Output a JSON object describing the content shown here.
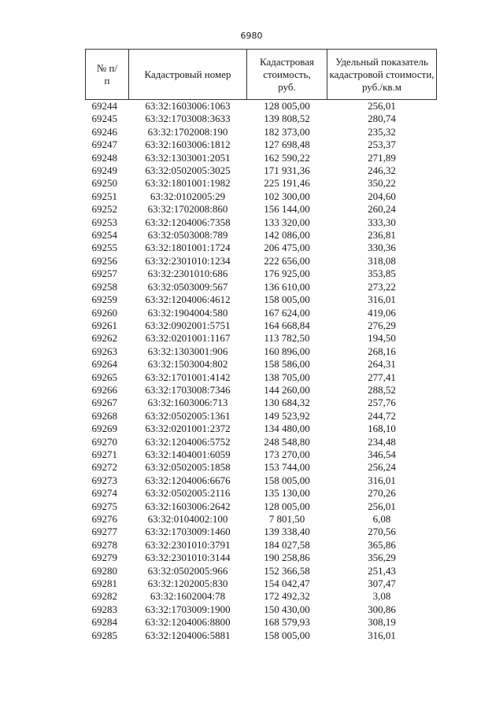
{
  "page_number": "6980",
  "table": {
    "headers": [
      "№ п/п",
      "Кадастровый номер",
      "Кадастровая стоимость, руб.",
      "Удельный показатель кадастровой стоимости, руб./кв.м"
    ],
    "rows": [
      [
        "69244",
        "63:32:1603006:1063",
        "128 005,00",
        "256,01"
      ],
      [
        "69245",
        "63:32:1703008:3633",
        "139 808,52",
        "280,74"
      ],
      [
        "69246",
        "63:32:1702008:190",
        "182 373,00",
        "235,32"
      ],
      [
        "69247",
        "63:32:1603006:1812",
        "127 698,48",
        "253,37"
      ],
      [
        "69248",
        "63:32:1303001:2051",
        "162 590,22",
        "271,89"
      ],
      [
        "69249",
        "63:32:0502005:3025",
        "171 931,36",
        "246,32"
      ],
      [
        "69250",
        "63:32:1801001:1982",
        "225 191,46",
        "350,22"
      ],
      [
        "69251",
        "63:32:0102005:29",
        "102 300,00",
        "204,60"
      ],
      [
        "69252",
        "63:32:1702008:860",
        "156 144,00",
        "260,24"
      ],
      [
        "69253",
        "63:32:1204006:7358",
        "133 320,00",
        "333,30"
      ],
      [
        "69254",
        "63:32:0503008:789",
        "142 086,00",
        "236,81"
      ],
      [
        "69255",
        "63:32:1801001:1724",
        "206 475,00",
        "330,36"
      ],
      [
        "69256",
        "63:32:2301010:1234",
        "222 656,00",
        "318,08"
      ],
      [
        "69257",
        "63:32:2301010:686",
        "176 925,00",
        "353,85"
      ],
      [
        "69258",
        "63:32:0503009:567",
        "136 610,00",
        "273,22"
      ],
      [
        "69259",
        "63:32:1204006:4612",
        "158 005,00",
        "316,01"
      ],
      [
        "69260",
        "63:32:1904004:580",
        "167 624,00",
        "419,06"
      ],
      [
        "69261",
        "63:32:0902001:5751",
        "164 668,84",
        "276,29"
      ],
      [
        "69262",
        "63:32:0201001:1167",
        "113 782,50",
        "194,50"
      ],
      [
        "69263",
        "63:32:1303001:906",
        "160 896,00",
        "268,16"
      ],
      [
        "69264",
        "63:32:1503004:802",
        "158 586,00",
        "264,31"
      ],
      [
        "69265",
        "63:32:1701001:4142",
        "138 705,00",
        "277,41"
      ],
      [
        "69266",
        "63:32:1703008:7346",
        "144 260,00",
        "288,52"
      ],
      [
        "69267",
        "63:32:1603006:713",
        "130 684,32",
        "257,76"
      ],
      [
        "69268",
        "63:32:0502005:1361",
        "149 523,92",
        "244,72"
      ],
      [
        "69269",
        "63:32:0201001:2372",
        "134 480,00",
        "168,10"
      ],
      [
        "69270",
        "63:32:1204006:5752",
        "248 548,80",
        "234,48"
      ],
      [
        "69271",
        "63:32:1404001:6059",
        "173 270,00",
        "346,54"
      ],
      [
        "69272",
        "63:32:0502005:1858",
        "153 744,00",
        "256,24"
      ],
      [
        "69273",
        "63:32:1204006:6676",
        "158 005,00",
        "316,01"
      ],
      [
        "69274",
        "63:32:0502005:2116",
        "135 130,00",
        "270,26"
      ],
      [
        "69275",
        "63:32:1603006:2642",
        "128 005,00",
        "256,01"
      ],
      [
        "69276",
        "63:32:0104002:100",
        "7 801,50",
        "6,08"
      ],
      [
        "69277",
        "63:32:1703009:1460",
        "139 338,40",
        "270,56"
      ],
      [
        "69278",
        "63:32:2301010:3791",
        "184 027,58",
        "365,86"
      ],
      [
        "69279",
        "63:32:2301010:3144",
        "190 258,86",
        "356,29"
      ],
      [
        "69280",
        "63:32:0502005:966",
        "152 366,58",
        "251,43"
      ],
      [
        "69281",
        "63:32:1202005:830",
        "154 042,47",
        "307,47"
      ],
      [
        "69282",
        "63:32:1602004:78",
        "172 492,32",
        "3,08"
      ],
      [
        "69283",
        "63:32:1703009:1900",
        "150 430,00",
        "300,86"
      ],
      [
        "69284",
        "63:32:1204006:8800",
        "168 579,93",
        "308,19"
      ],
      [
        "69285",
        "63:32:1204006:5881",
        "158 005,00",
        "316,01"
      ]
    ]
  }
}
